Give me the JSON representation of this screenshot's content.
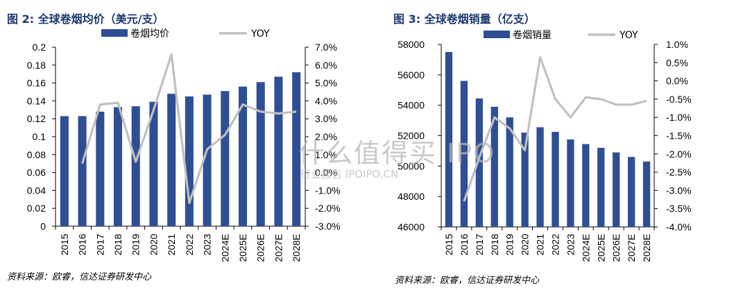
{
  "charts": [
    {
      "title": "图 2: 全球卷烟均价（美元/支）",
      "source": "资料来源：欧睿，信达证券研发中心",
      "legend": {
        "bar": "卷烟均价",
        "line": "YOY"
      },
      "y_left_ticks": [
        "0",
        "0.02",
        "0.04",
        "0.06",
        "0.08",
        "0.1",
        "0.12",
        "0.14",
        "0.16",
        "0.18",
        "0.2"
      ],
      "y_right_ticks": [
        "-3.0%",
        "-2.0%",
        "-1.0%",
        "0.0%",
        "1.0%",
        "2.0%",
        "3.0%",
        "4.0%",
        "5.0%",
        "6.0%",
        "7.0%"
      ]
    },
    {
      "title": "图 3: 全球卷烟销量（亿支）",
      "source": "资料来源：欧睿，信达证券研发中心",
      "legend": {
        "bar": "卷烟销量",
        "line": "YOY"
      },
      "y_left_ticks": [
        "46000",
        "48000",
        "50000",
        "52000",
        "54000",
        "56000",
        "58000"
      ],
      "y_right_ticks": [
        "-4.0%",
        "-3.5%",
        "-3.0%",
        "-2.5%",
        "-2.0%",
        "-1.5%",
        "-1.0%",
        "-0.5%",
        "0.0%",
        "0.5%",
        "1.0%"
      ]
    }
  ],
  "watermark": {
    "main": "什么值得买 IPO",
    "sub": "行业报告 IPOIPO.CN"
  },
  "colors": {
    "bar": "#2f4f95",
    "line": "#c0c0c0",
    "title": "#1f3a6e"
  },
  "chart_data": [
    {
      "type": "bar+line",
      "title": "图 2: 全球卷烟均价（美元/支）",
      "categories": [
        "2015",
        "2016",
        "2017",
        "2018",
        "2019",
        "2020",
        "2021",
        "2022",
        "2023",
        "2024E",
        "2025E",
        "2026E",
        "2027E",
        "2028E"
      ],
      "series": [
        {
          "name": "卷烟均价",
          "type": "bar",
          "axis": "left",
          "values": [
            0.123,
            0.123,
            0.128,
            0.133,
            0.134,
            0.139,
            0.148,
            0.145,
            0.147,
            0.151,
            0.156,
            0.161,
            0.167,
            0.172
          ]
        },
        {
          "name": "YOY",
          "type": "line",
          "axis": "right",
          "values": [
            null,
            0.5,
            3.8,
            3.9,
            0.6,
            3.5,
            6.6,
            -1.7,
            1.3,
            2.1,
            3.8,
            3.4,
            3.3,
            3.4
          ]
        }
      ],
      "ylim_left": [
        0,
        0.2
      ],
      "ylim_right": [
        -3.0,
        7.0
      ],
      "grid": false,
      "legend_position": "top"
    },
    {
      "type": "bar+line",
      "title": "图 3: 全球卷烟销量（亿支）",
      "categories": [
        "2015",
        "2016",
        "2017",
        "2018",
        "2019",
        "2020",
        "2021",
        "2022",
        "2023",
        "2024E",
        "2025E",
        "2026E",
        "2027E",
        "2028E"
      ],
      "series": [
        {
          "name": "卷烟销量",
          "type": "bar",
          "axis": "left",
          "values": [
            57500,
            55600,
            54450,
            53900,
            53200,
            52200,
            52550,
            52250,
            51750,
            51450,
            51200,
            50900,
            50600,
            50300
          ]
        },
        {
          "name": "YOY",
          "type": "line",
          "axis": "right",
          "values": [
            null,
            -3.3,
            -2.1,
            -1.0,
            -1.3,
            -1.9,
            0.65,
            -0.5,
            -1.0,
            -0.45,
            -0.5,
            -0.65,
            -0.65,
            -0.55
          ]
        }
      ],
      "ylim_left": [
        46000,
        58000
      ],
      "ylim_right": [
        -4.0,
        1.0
      ],
      "grid": false,
      "legend_position": "top"
    }
  ]
}
